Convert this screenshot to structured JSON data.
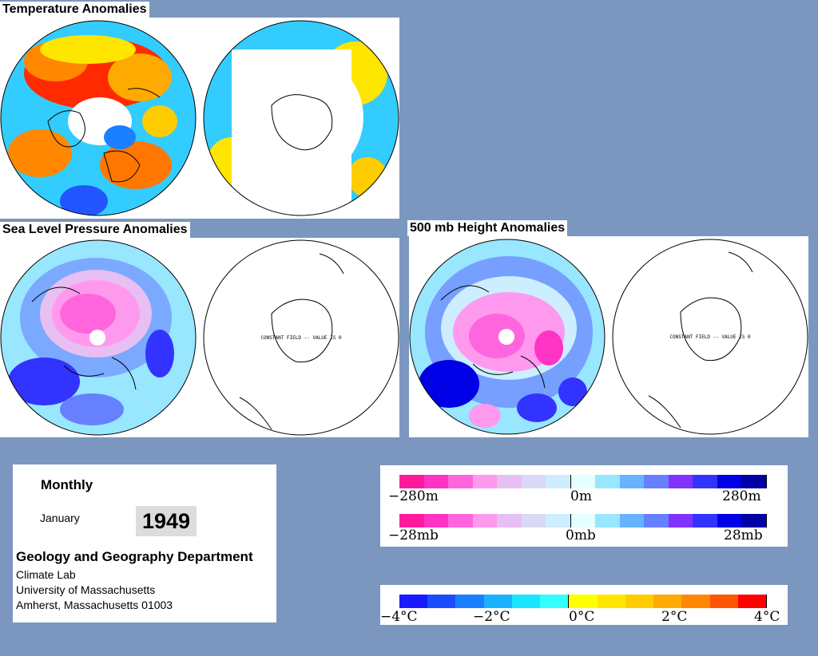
{
  "panels": {
    "temperature": {
      "title": "Temperature Anomalies"
    },
    "slp": {
      "title": "Sea Level Pressure Anomalies",
      "sh_message": "CONSTANT FIELD -- VALUE IS 0"
    },
    "h500": {
      "title": "500 mb Height Anomalies",
      "sh_message": "CONSTANT FIELD -- VALUE IS 0"
    }
  },
  "info": {
    "period": "Monthly",
    "month": "January",
    "year": "1949",
    "department": "Geology and Geography Department",
    "lab": "Climate Lab",
    "university": "University of Massachusetts",
    "address": "Amherst, Massachusetts 01003"
  },
  "legends": {
    "height": {
      "min": "−280m",
      "mid": "0m",
      "max": "280m"
    },
    "pressure": {
      "min": "−28mb",
      "mid": "0mb",
      "max": "28mb"
    },
    "temperature": {
      "l1": "−4°C",
      "l2": "−2°C",
      "l3": "0°C",
      "l4": "2°C",
      "l5": "4°C"
    }
  },
  "colors": {
    "background": "#7b97bf",
    "anomaly_scale": [
      "#ff1a9c",
      "#ff33c4",
      "#ff66dd",
      "#ff99ee",
      "#e8bff2",
      "#d9d9f5",
      "#cceeff",
      "#e6ffff",
      "#99e6ff",
      "#66b3ff",
      "#6680ff",
      "#8033ff",
      "#3333ff",
      "#0000e6",
      "#0000a6"
    ],
    "temperature_scale": [
      "#1a1aff",
      "#1a4dff",
      "#1a80ff",
      "#1ab3ff",
      "#1ae6ff",
      "#33ffff",
      "#ffff00",
      "#ffe600",
      "#ffcc00",
      "#ffaa00",
      "#ff8800",
      "#ff5500",
      "#ff0000"
    ]
  }
}
